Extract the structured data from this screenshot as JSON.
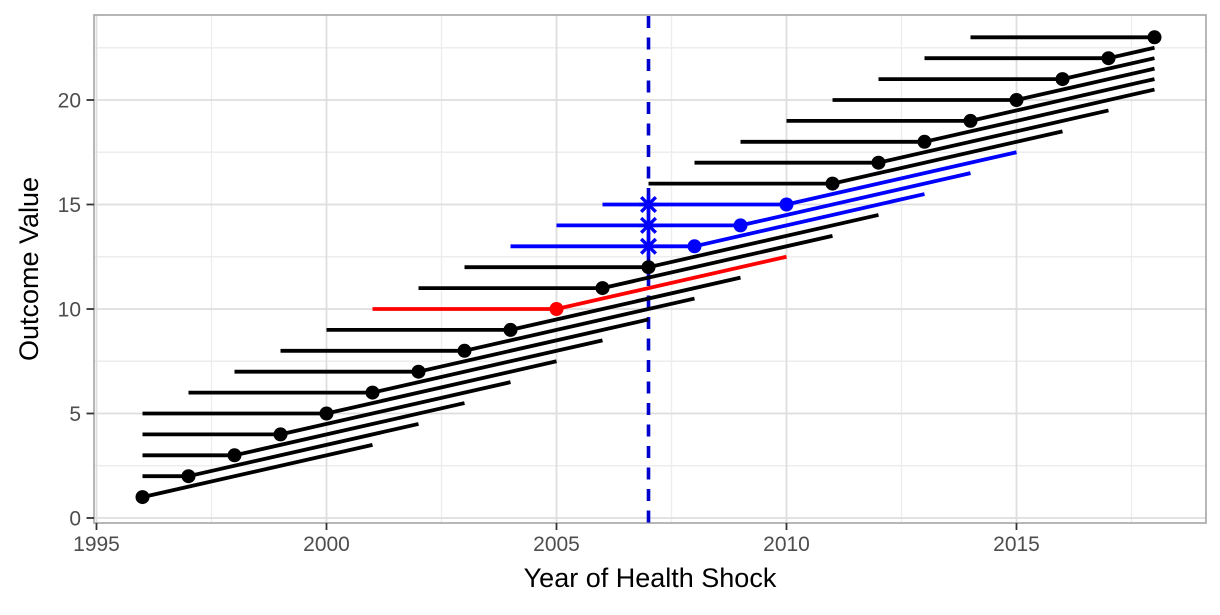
{
  "chart_data": {
    "type": "line",
    "title": "",
    "xlabel": "Year of Health Shock",
    "ylabel": "Outcome Value",
    "x_ticks": [
      1995,
      2000,
      2005,
      2010,
      2015
    ],
    "x_tick_labels": [
      "1995",
      "2000",
      "2005",
      "2010",
      "2015"
    ],
    "x_minor_ticks": [
      1997.5,
      2002.5,
      2007.5,
      2012.5,
      2017.5
    ],
    "y_ticks": [
      0,
      5,
      10,
      15,
      20
    ],
    "y_tick_labels": [
      "0",
      "5",
      "10",
      "15",
      "20"
    ],
    "y_minor_ticks": [
      2.5,
      7.5,
      12.5,
      17.5,
      22.5
    ],
    "xlim": [
      1994.93,
      2019.13
    ],
    "ylim": [
      -0.24,
      24.07
    ],
    "grid": "major-and-minor",
    "legend_position": "none",
    "event_line": {
      "x": 2007,
      "style": "dashed",
      "color": "#0000CD"
    },
    "series_model": {
      "observation_window": [
        1996,
        2018
      ],
      "pre_period_years": 4,
      "pre_slope_per_year": 0,
      "post_period_years": 5,
      "post_slope_per_year": 0.5,
      "value_rule": "outcome value = shock year - 1995"
    },
    "colors": {
      "black": "#000000",
      "red": "#FF0000",
      "blue": "#0000FF"
    },
    "marker": {
      "point": "filled-circle",
      "point_radius": 7,
      "censor_marker": "asterisk-cross"
    },
    "cohorts": [
      {
        "shock_year": 1996,
        "value": 1,
        "pre_start": 1996,
        "post_end_year": 2001,
        "post_end_value": 3.5,
        "color": "black"
      },
      {
        "shock_year": 1997,
        "value": 2,
        "pre_start": 1996,
        "post_end_year": 2002,
        "post_end_value": 4.5,
        "color": "black"
      },
      {
        "shock_year": 1998,
        "value": 3,
        "pre_start": 1996,
        "post_end_year": 2003,
        "post_end_value": 5.5,
        "color": "black"
      },
      {
        "shock_year": 1999,
        "value": 4,
        "pre_start": 1996,
        "post_end_year": 2004,
        "post_end_value": 6.5,
        "color": "black"
      },
      {
        "shock_year": 2000,
        "value": 5,
        "pre_start": 1996,
        "post_end_year": 2005,
        "post_end_value": 7.5,
        "color": "black"
      },
      {
        "shock_year": 2001,
        "value": 6,
        "pre_start": 1997,
        "post_end_year": 2006,
        "post_end_value": 8.5,
        "color": "black"
      },
      {
        "shock_year": 2002,
        "value": 7,
        "pre_start": 1998,
        "post_end_year": 2007,
        "post_end_value": 9.5,
        "color": "black"
      },
      {
        "shock_year": 2003,
        "value": 8,
        "pre_start": 1999,
        "post_end_year": 2008,
        "post_end_value": 10.5,
        "color": "black"
      },
      {
        "shock_year": 2004,
        "value": 9,
        "pre_start": 2000,
        "post_end_year": 2009,
        "post_end_value": 11.5,
        "color": "black"
      },
      {
        "shock_year": 2005,
        "value": 10,
        "pre_start": 2001,
        "post_end_year": 2010,
        "post_end_value": 12.5,
        "color": "red"
      },
      {
        "shock_year": 2006,
        "value": 11,
        "pre_start": 2002,
        "post_end_year": 2011,
        "post_end_value": 13.5,
        "color": "black"
      },
      {
        "shock_year": 2007,
        "value": 12,
        "pre_start": 2003,
        "post_end_year": 2012,
        "post_end_value": 14.5,
        "color": "black"
      },
      {
        "shock_year": 2008,
        "value": 13,
        "pre_start": 2004,
        "post_end_year": 2013,
        "post_end_value": 15.5,
        "color": "blue",
        "cross_at": 2007
      },
      {
        "shock_year": 2009,
        "value": 14,
        "pre_start": 2005,
        "post_end_year": 2014,
        "post_end_value": 16.5,
        "color": "blue",
        "cross_at": 2007
      },
      {
        "shock_year": 2010,
        "value": 15,
        "pre_start": 2006,
        "post_end_year": 2015,
        "post_end_value": 17.5,
        "color": "blue",
        "cross_at": 2007
      },
      {
        "shock_year": 2011,
        "value": 16,
        "pre_start": 2007,
        "post_end_year": 2016,
        "post_end_value": 18.5,
        "color": "black"
      },
      {
        "shock_year": 2012,
        "value": 17,
        "pre_start": 2008,
        "post_end_year": 2017,
        "post_end_value": 19.5,
        "color": "black"
      },
      {
        "shock_year": 2013,
        "value": 18,
        "pre_start": 2009,
        "post_end_year": 2018,
        "post_end_value": 20.5,
        "color": "black"
      },
      {
        "shock_year": 2014,
        "value": 19,
        "pre_start": 2010,
        "post_end_year": 2018,
        "post_end_value": 21,
        "color": "black"
      },
      {
        "shock_year": 2015,
        "value": 20,
        "pre_start": 2011,
        "post_end_year": 2018,
        "post_end_value": 21.5,
        "color": "black"
      },
      {
        "shock_year": 2016,
        "value": 21,
        "pre_start": 2012,
        "post_end_year": 2018,
        "post_end_value": 22,
        "color": "black"
      },
      {
        "shock_year": 2017,
        "value": 22,
        "pre_start": 2013,
        "post_end_year": 2018,
        "post_end_value": 22.5,
        "color": "black"
      },
      {
        "shock_year": 2018,
        "value": 23,
        "pre_start": 2014,
        "post_end_year": 2018,
        "post_end_value": 23,
        "color": "black"
      }
    ],
    "style": {
      "panel_border_color": "#A5A5A5",
      "major_grid_color": "#DEDEDE",
      "minor_grid_color": "#EDEDED",
      "tick_mark_color": "#333333",
      "tick_label_color": "#4d4d4d",
      "line_width": 3.8
    }
  }
}
